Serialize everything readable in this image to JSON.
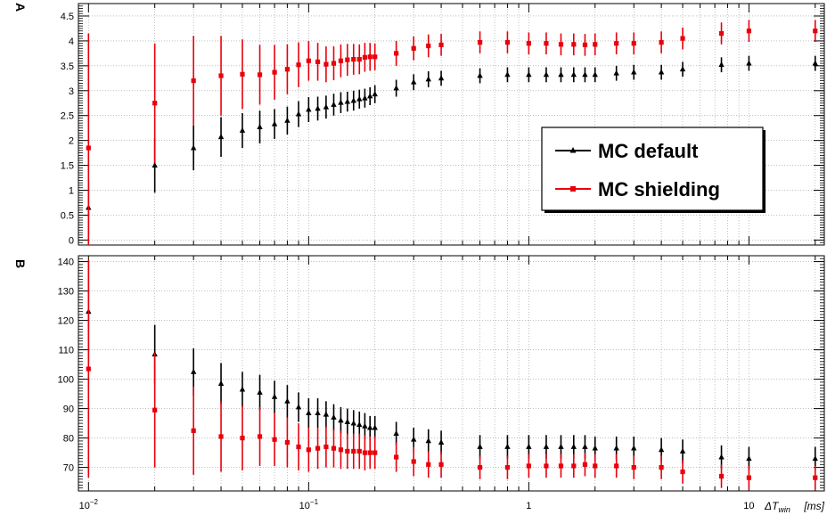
{
  "chart_data": [
    {
      "panel_label": "A",
      "type": "scatter",
      "error_bars": true,
      "x_scale": "log",
      "xlim": [
        0.009,
        22
      ],
      "ylim": [
        -0.1,
        4.75
      ],
      "grid": true,
      "y_ticks": [
        "0",
        "0.5",
        "1",
        "1.5",
        "2",
        "2.5",
        "3",
        "3.5",
        "4",
        "4.5"
      ],
      "legend": {
        "placement": "center-right",
        "entries": [
          {
            "label": "MC default",
            "color": "#000000",
            "marker": "triangle"
          },
          {
            "label": "MC shielding",
            "color": "#e8000b",
            "marker": "square"
          }
        ]
      },
      "series": [
        {
          "name": "MC default",
          "color": "#000000",
          "marker": "triangle",
          "x": [
            0.01,
            0.02,
            0.03,
            0.04,
            0.05,
            0.06,
            0.07,
            0.08,
            0.09,
            0.1,
            0.11,
            0.12,
            0.13,
            0.14,
            0.15,
            0.16,
            0.17,
            0.18,
            0.19,
            0.2,
            0.25,
            0.3,
            0.35,
            0.4,
            0.6,
            0.8,
            1,
            1.2,
            1.4,
            1.6,
            1.8,
            2,
            2.5,
            3,
            4,
            5,
            7.5,
            10,
            20
          ],
          "y": [
            0.65,
            1.5,
            1.85,
            2.07,
            2.2,
            2.27,
            2.33,
            2.4,
            2.53,
            2.62,
            2.64,
            2.67,
            2.72,
            2.76,
            2.78,
            2.8,
            2.83,
            2.85,
            2.89,
            2.93,
            3.05,
            3.17,
            3.23,
            3.25,
            3.3,
            3.32,
            3.32,
            3.32,
            3.32,
            3.32,
            3.32,
            3.32,
            3.35,
            3.37,
            3.37,
            3.43,
            3.52,
            3.55,
            3.55
          ],
          "err": [
            0.55,
            0.55,
            0.45,
            0.4,
            0.35,
            0.33,
            0.3,
            0.28,
            0.26,
            0.25,
            0.24,
            0.23,
            0.22,
            0.21,
            0.2,
            0.2,
            0.19,
            0.19,
            0.18,
            0.18,
            0.17,
            0.16,
            0.16,
            0.15,
            0.15,
            0.15,
            0.15,
            0.15,
            0.15,
            0.15,
            0.15,
            0.15,
            0.15,
            0.15,
            0.15,
            0.15,
            0.15,
            0.15,
            0.15
          ]
        },
        {
          "name": "MC shielding",
          "color": "#e8000b",
          "marker": "square",
          "x": [
            0.01,
            0.02,
            0.03,
            0.04,
            0.05,
            0.06,
            0.07,
            0.08,
            0.09,
            0.1,
            0.11,
            0.12,
            0.13,
            0.14,
            0.15,
            0.16,
            0.17,
            0.18,
            0.19,
            0.2,
            0.25,
            0.3,
            0.35,
            0.4,
            0.6,
            0.8,
            1,
            1.2,
            1.4,
            1.6,
            1.8,
            2,
            2.5,
            3,
            4,
            5,
            7.5,
            10,
            20
          ],
          "y": [
            1.85,
            2.75,
            3.2,
            3.3,
            3.33,
            3.32,
            3.37,
            3.43,
            3.52,
            3.6,
            3.58,
            3.53,
            3.55,
            3.6,
            3.62,
            3.63,
            3.63,
            3.67,
            3.68,
            3.68,
            3.75,
            3.85,
            3.9,
            3.92,
            3.97,
            3.97,
            3.95,
            3.95,
            3.93,
            3.93,
            3.92,
            3.93,
            3.95,
            3.95,
            3.97,
            4.05,
            4.15,
            4.2,
            4.2
          ]
        }
      ],
      "shielding_err": [
        2.3,
        1.2,
        0.9,
        0.8,
        0.7,
        0.6,
        0.55,
        0.5,
        0.45,
        0.4,
        0.38,
        0.36,
        0.34,
        0.33,
        0.32,
        0.31,
        0.3,
        0.29,
        0.28,
        0.27,
        0.25,
        0.24,
        0.23,
        0.22,
        0.22,
        0.22,
        0.22,
        0.22,
        0.22,
        0.22,
        0.22,
        0.22,
        0.22,
        0.22,
        0.22,
        0.22,
        0.22,
        0.22,
        0.22
      ]
    },
    {
      "panel_label": "B",
      "type": "scatter",
      "error_bars": true,
      "x_scale": "log",
      "xlim": [
        0.009,
        22
      ],
      "ylim": [
        62,
        142
      ],
      "grid": true,
      "y_ticks": [
        "70",
        "80",
        "90",
        "100",
        "110",
        "120",
        "130",
        "140"
      ],
      "x_ticks": [
        {
          "value": 0.01,
          "base": "10",
          "exp": "−2"
        },
        {
          "value": 0.1,
          "base": "10",
          "exp": "−1"
        },
        {
          "value": 1,
          "base": "1",
          "exp": ""
        },
        {
          "value": 10,
          "base": "10",
          "exp": ""
        }
      ],
      "xlabel_main": "ΔT",
      "xlabel_sub": "win",
      "xlabel_unit": "[ms]",
      "series": [
        {
          "name": "MC default",
          "color": "#000000",
          "marker": "triangle",
          "x": [
            0.01,
            0.02,
            0.03,
            0.04,
            0.05,
            0.06,
            0.07,
            0.08,
            0.09,
            0.1,
            0.11,
            0.12,
            0.13,
            0.14,
            0.15,
            0.16,
            0.17,
            0.18,
            0.19,
            0.2,
            0.25,
            0.3,
            0.35,
            0.4,
            0.6,
            0.8,
            1,
            1.2,
            1.4,
            1.6,
            1.8,
            2,
            2.5,
            3,
            4,
            5,
            7.5,
            10,
            20
          ],
          "y": [
            123,
            108.5,
            102.5,
            98.5,
            96.5,
            95.5,
            94,
            92.5,
            90.5,
            88.5,
            88.5,
            88,
            87,
            86,
            85.5,
            85,
            84.5,
            84,
            83.5,
            83.5,
            81.5,
            79.5,
            79,
            78.5,
            77,
            77,
            77,
            77,
            77,
            77,
            77,
            76.5,
            76.5,
            76.5,
            76,
            75.5,
            73.5,
            73,
            73
          ],
          "err": [
            17,
            10,
            8,
            7,
            6,
            6,
            5.5,
            5.5,
            5,
            5,
            5,
            4.5,
            4.5,
            4.5,
            4.5,
            4.5,
            4.5,
            4.5,
            4,
            4,
            4,
            4,
            4,
            4,
            4,
            4,
            4,
            4,
            4,
            4,
            4,
            4,
            4,
            4,
            4,
            4,
            4,
            4,
            4
          ]
        },
        {
          "name": "MC shielding",
          "color": "#e8000b",
          "marker": "square",
          "x": [
            0.01,
            0.02,
            0.03,
            0.04,
            0.05,
            0.06,
            0.07,
            0.08,
            0.09,
            0.1,
            0.11,
            0.12,
            0.13,
            0.14,
            0.15,
            0.16,
            0.17,
            0.18,
            0.19,
            0.2,
            0.25,
            0.3,
            0.35,
            0.4,
            0.6,
            0.8,
            1,
            1.2,
            1.4,
            1.6,
            1.8,
            2,
            2.5,
            3,
            4,
            5,
            7.5,
            10,
            20
          ],
          "y": [
            103.5,
            89.5,
            82.5,
            80.5,
            80,
            80.5,
            79.5,
            78.5,
            77,
            76,
            76.5,
            77,
            76.5,
            76,
            75.5,
            75.5,
            75.5,
            75,
            75,
            75,
            73.5,
            72,
            71,
            71,
            70,
            70,
            70.5,
            70.5,
            70.5,
            70.5,
            71,
            70.5,
            70.5,
            70,
            70,
            68.5,
            67,
            66.5,
            66.5
          ],
          "err": [
            37,
            19.5,
            15,
            12,
            11,
            10,
            9,
            8.5,
            8,
            7.5,
            7,
            7,
            6.5,
            6.5,
            6,
            6,
            6,
            6,
            5.5,
            5.5,
            5,
            5,
            4.5,
            4.5,
            4,
            4,
            4,
            4,
            4,
            4,
            4,
            4,
            4,
            4,
            4,
            4,
            4,
            4,
            4
          ]
        }
      ]
    }
  ]
}
